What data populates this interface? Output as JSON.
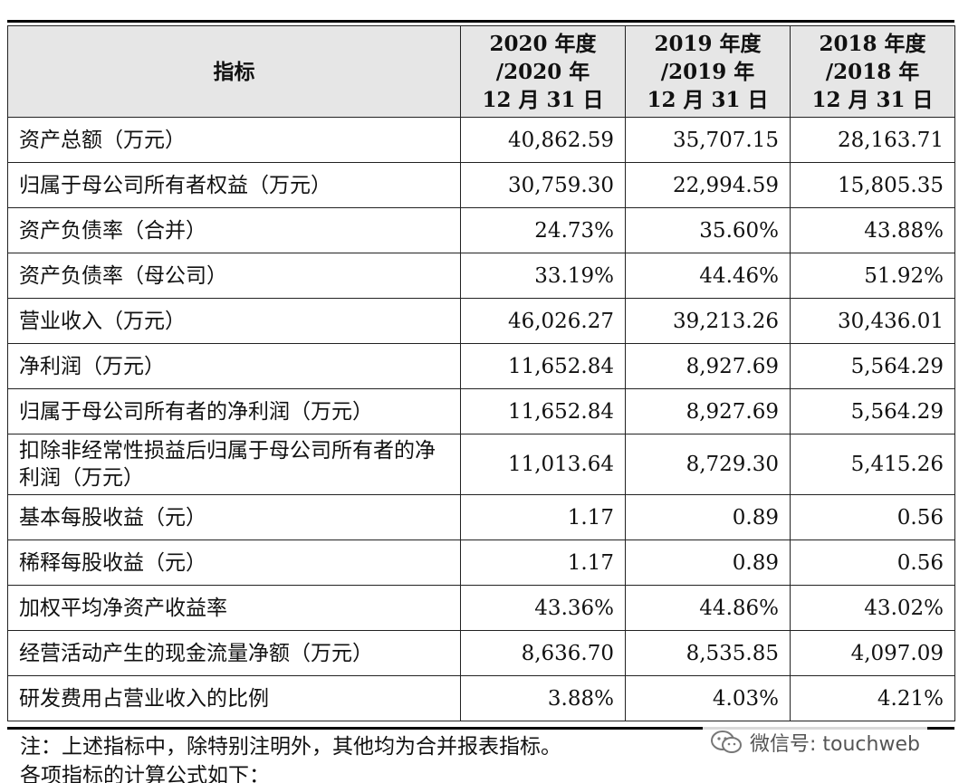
{
  "table": {
    "header": {
      "label": "指标",
      "col2020": [
        "2020 年度",
        "/2020 年",
        "12 月 31 日"
      ],
      "col2019": [
        "2019 年度",
        "/2019 年",
        "12 月 31 日"
      ],
      "col2018": [
        "2018 年度",
        "/2018 年",
        "12 月 31 日"
      ]
    },
    "rows": [
      {
        "label": "资产总额（万元）",
        "v2020": "40,862.59",
        "v2019": "35,707.15",
        "v2018": "28,163.71"
      },
      {
        "label": "归属于母公司所有者权益（万元）",
        "v2020": "30,759.30",
        "v2019": "22,994.59",
        "v2018": "15,805.35"
      },
      {
        "label": "资产负债率（合并）",
        "v2020": "24.73%",
        "v2019": "35.60%",
        "v2018": "43.88%"
      },
      {
        "label": "资产负债率（母公司）",
        "v2020": "33.19%",
        "v2019": "44.46%",
        "v2018": "51.92%"
      },
      {
        "label": "营业收入（万元）",
        "v2020": "46,026.27",
        "v2019": "39,213.26",
        "v2018": "30,436.01"
      },
      {
        "label": "净利润（万元）",
        "v2020": "11,652.84",
        "v2019": "8,927.69",
        "v2018": "5,564.29"
      },
      {
        "label": "归属于母公司所有者的净利润（万元）",
        "v2020": "11,652.84",
        "v2019": "8,927.69",
        "v2018": "5,564.29"
      },
      {
        "label": "扣除非经常性损益后归属于母公司所有者的净利润（万元）",
        "v2020": "11,013.64",
        "v2019": "8,729.30",
        "v2018": "5,415.26"
      },
      {
        "label": "基本每股收益（元）",
        "v2020": "1.17",
        "v2019": "0.89",
        "v2018": "0.56"
      },
      {
        "label": "稀释每股收益（元）",
        "v2020": "1.17",
        "v2019": "0.89",
        "v2018": "0.56"
      },
      {
        "label": "加权平均净资产收益率",
        "v2020": "43.36%",
        "v2019": "44.86%",
        "v2018": "43.02%"
      },
      {
        "label": "经营活动产生的现金流量净额（万元）",
        "v2020": "8,636.70",
        "v2019": "8,535.85",
        "v2018": "4,097.09"
      },
      {
        "label": "研发费用占营业收入的比例",
        "v2020": "3.88%",
        "v2019": "4.03%",
        "v2018": "4.21%"
      }
    ]
  },
  "notes": {
    "line1": "注：上述指标中，除特别注明外，其他均为合并报表指标。",
    "line2": "各项指标的计算公式如下："
  },
  "watermark": {
    "text": "微信号: touchweb",
    "icon": "wechat-icon"
  }
}
